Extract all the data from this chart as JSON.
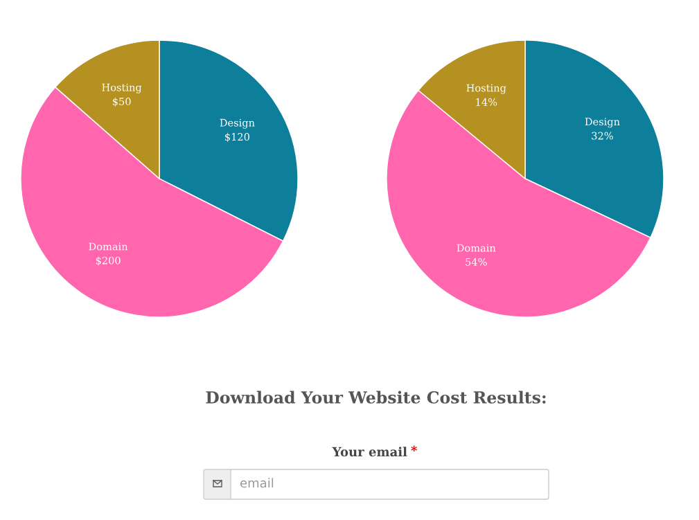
{
  "chart_data": [
    {
      "type": "pie",
      "categories": [
        "Design",
        "Domain",
        "Hosting"
      ],
      "values": [
        120,
        200,
        50
      ],
      "value_labels": [
        "$120",
        "$200",
        "$50"
      ],
      "colors": [
        "#0e7f9b",
        "#ff66ae",
        "#b49120"
      ]
    },
    {
      "type": "pie",
      "categories": [
        "Design",
        "Domain",
        "Hosting"
      ],
      "values": [
        32,
        54,
        14
      ],
      "value_labels": [
        "32%",
        "54%",
        "14%"
      ],
      "colors": [
        "#0e7f9b",
        "#ff66ae",
        "#b49120"
      ]
    },
    {
      "type": "other",
      "title": "Download Your Website Cost Results:",
      "annotations": [
        "Your email",
        "*",
        "email"
      ]
    }
  ]
}
